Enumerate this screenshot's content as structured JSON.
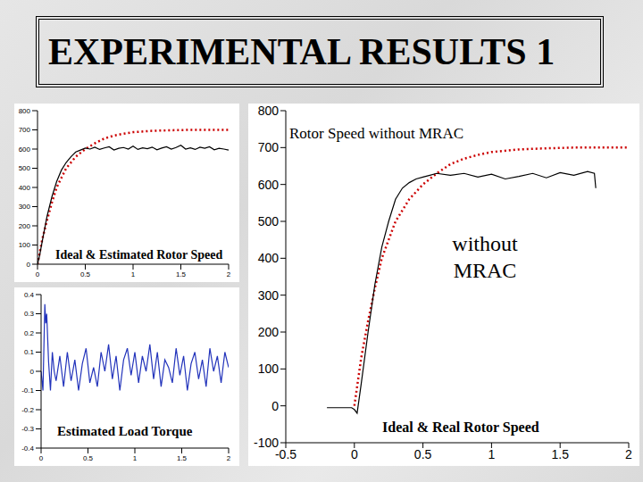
{
  "title": "EXPERIMENTAL RESULTS 1",
  "chart_data": [
    {
      "type": "line",
      "title": "Ideal & Estimated Rotor Speed",
      "xlim": [
        0,
        2
      ],
      "xticks": [
        0,
        0.5,
        1,
        1.5,
        2
      ],
      "ylim": [
        0,
        800
      ],
      "yticks": [
        0,
        100,
        200,
        300,
        400,
        500,
        600,
        700,
        800
      ],
      "grid": false,
      "series": [
        {
          "color": "#cc0000",
          "line_style": "dotted",
          "x": [
            0,
            0.05,
            0.1,
            0.15,
            0.2,
            0.25,
            0.3,
            0.4,
            0.5,
            0.6,
            0.7,
            0.8,
            0.9,
            1.0,
            1.2,
            1.4,
            1.6,
            1.8,
            2.0
          ],
          "values": [
            0,
            130,
            230,
            320,
            400,
            450,
            500,
            560,
            600,
            630,
            655,
            670,
            680,
            688,
            695,
            698,
            700,
            700,
            700
          ]
        },
        {
          "color": "#000000",
          "line_style": "solid",
          "x": [
            0,
            0.02,
            0.05,
            0.1,
            0.15,
            0.2,
            0.25,
            0.3,
            0.35,
            0.4,
            0.45,
            0.5,
            0.55,
            0.6,
            0.65,
            0.7,
            0.75,
            0.8,
            0.85,
            0.9,
            0.95,
            1.0,
            1.05,
            1.1,
            1.15,
            1.2,
            1.25,
            1.3,
            1.35,
            1.4,
            1.45,
            1.5,
            1.55,
            1.6,
            1.65,
            1.7,
            1.75,
            1.8,
            1.85,
            1.9,
            1.95,
            2.0
          ],
          "values": [
            0,
            40,
            120,
            250,
            350,
            430,
            490,
            530,
            560,
            585,
            595,
            605,
            600,
            610,
            598,
            606,
            612,
            595,
            604,
            608,
            600,
            615,
            598,
            606,
            602,
            610,
            596,
            605,
            612,
            600,
            608,
            620,
            600,
            606,
            598,
            610,
            604,
            612,
            596,
            604,
            600,
            595
          ]
        }
      ]
    },
    {
      "type": "line",
      "title": "Estimated Load Torque",
      "xlim": [
        0,
        2
      ],
      "xticks": [
        0,
        0.5,
        1,
        1.5,
        2
      ],
      "ylim": [
        -0.4,
        0.4
      ],
      "yticks": [
        -0.4,
        -0.3,
        -0.2,
        -0.1,
        0,
        0.1,
        0.2,
        0.3,
        0.4
      ],
      "grid": false,
      "series": [
        {
          "color": "#2233bb",
          "line_style": "solid",
          "x": [
            0,
            0.02,
            0.04,
            0.05,
            0.06,
            0.08,
            0.1,
            0.12,
            0.14,
            0.16,
            0.2,
            0.24,
            0.28,
            0.32,
            0.36,
            0.4,
            0.44,
            0.48,
            0.52,
            0.56,
            0.6,
            0.64,
            0.68,
            0.72,
            0.76,
            0.8,
            0.84,
            0.88,
            0.92,
            0.96,
            1.0,
            1.04,
            1.08,
            1.12,
            1.16,
            1.2,
            1.24,
            1.28,
            1.32,
            1.36,
            1.4,
            1.44,
            1.48,
            1.52,
            1.56,
            1.6,
            1.64,
            1.68,
            1.72,
            1.76,
            1.8,
            1.84,
            1.88,
            1.92,
            1.96,
            2.0
          ],
          "values": [
            0,
            -0.1,
            0.35,
            0.25,
            0.3,
            0.05,
            -0.1,
            0.1,
            0,
            -0.05,
            0.08,
            -0.08,
            0.1,
            -0.05,
            0.06,
            -0.1,
            0.04,
            0.12,
            -0.06,
            0.02,
            -0.08,
            0.1,
            0,
            0.14,
            -0.04,
            0.08,
            -0.1,
            0.06,
            0.12,
            -0.02,
            0.1,
            -0.06,
            0.08,
            0,
            0.14,
            -0.04,
            0.1,
            -0.08,
            0.06,
            0.02,
            -0.06,
            0.12,
            -0.02,
            0.08,
            -0.1,
            0.04,
            0.1,
            -0.04,
            0.06,
            -0.08,
            0.12,
            0,
            0.08,
            -0.06,
            0.1,
            0.02
          ]
        }
      ]
    },
    {
      "type": "line",
      "title": "Rotor Speed without MRAC",
      "annotations": [
        "without MRAC",
        "Ideal & Real Rotor Speed"
      ],
      "xlim": [
        -0.5,
        2
      ],
      "xticks": [
        -0.5,
        0,
        0.5,
        1,
        1.5,
        2
      ],
      "ylim": [
        -100,
        800
      ],
      "yticks": [
        -100,
        0,
        100,
        200,
        300,
        400,
        500,
        600,
        700,
        800
      ],
      "grid": false,
      "series": [
        {
          "color": "#cc0000",
          "line_style": "dotted",
          "x": [
            0,
            0.05,
            0.1,
            0.15,
            0.2,
            0.25,
            0.3,
            0.4,
            0.5,
            0.6,
            0.7,
            0.8,
            0.9,
            1.0,
            1.2,
            1.4,
            1.6,
            1.8,
            2.0
          ],
          "values": [
            0,
            130,
            230,
            320,
            400,
            450,
            500,
            560,
            600,
            630,
            655,
            670,
            680,
            688,
            695,
            698,
            700,
            700,
            700
          ]
        },
        {
          "color": "#000000",
          "line_style": "solid",
          "x": [
            -0.2,
            -0.1,
            -0.02,
            0,
            0.02,
            0.05,
            0.1,
            0.15,
            0.2,
            0.25,
            0.3,
            0.35,
            0.4,
            0.45,
            0.5,
            0.55,
            0.6,
            0.7,
            0.8,
            0.9,
            1.0,
            1.1,
            1.2,
            1.3,
            1.4,
            1.5,
            1.6,
            1.7,
            1.75,
            1.76
          ],
          "values": [
            -5,
            -5,
            -5,
            -10,
            -20,
            60,
            200,
            330,
            430,
            500,
            560,
            590,
            605,
            615,
            620,
            625,
            630,
            625,
            630,
            620,
            628,
            615,
            622,
            630,
            618,
            632,
            625,
            635,
            630,
            590
          ]
        }
      ]
    }
  ]
}
